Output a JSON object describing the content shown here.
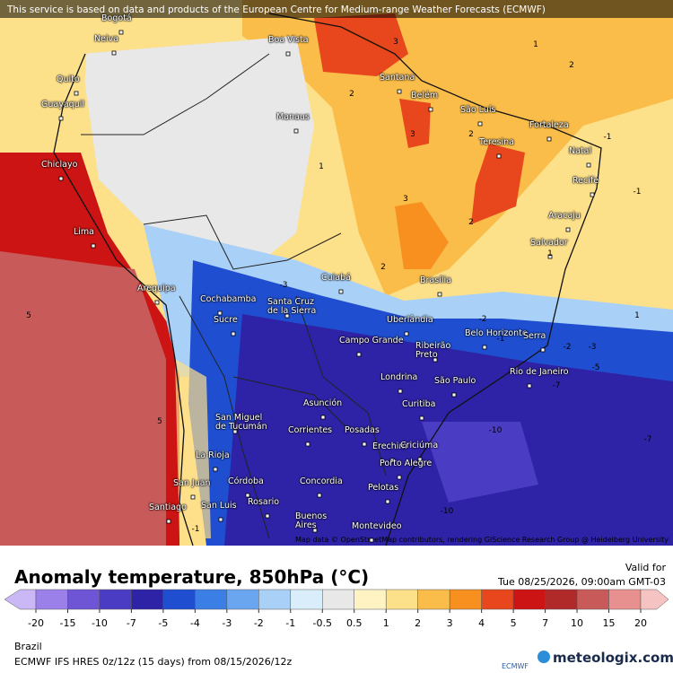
{
  "banner": "This service is based on data and products of the European Centre for Medium-range Weather Forecasts (ECMWF)",
  "cities": [
    "Bogotá",
    "Neiva",
    "Quito",
    "Guayaquil",
    "Chiclayo",
    "Lima",
    "Arequipa",
    "Cochabamba",
    "Sucre",
    "Santa Cruz\nde la Sierra",
    "Cuiabá",
    "Brasília",
    "Uberlândia",
    "Belo Horizonte",
    "Campo Grande",
    "Ribeirão\nPreto",
    "Rio de Janeiro",
    "São Paulo",
    "Londrina",
    "Curitiba",
    "Asunción",
    "San Miguel\nde Tucumán",
    "Corrientes",
    "Posadas",
    "Erechim",
    "Criciúma",
    "Porto Alegre",
    "La Rioja",
    "Córdoba",
    "San Juan",
    "Concordia",
    "Pelotas",
    "Rosario",
    "San Luis",
    "Santiago",
    "Buenos\nAires",
    "Montevideo",
    "Boa Vista",
    "Manaus",
    "Santana",
    "Belém",
    "São Luís",
    "Fortaleza",
    "Teresina",
    "Natal",
    "Recife",
    "Aracaju",
    "Salvador",
    "Serra"
  ],
  "contour_labels": [
    "3",
    "2",
    "2",
    "3",
    "2",
    "1",
    "1",
    "3",
    "2",
    "2",
    "1",
    "-1",
    "-1",
    "1",
    "-2",
    "-1",
    "-2",
    "-3",
    "-5",
    "-7",
    "-10",
    "-7",
    "-10",
    "-1",
    "5",
    "5",
    "-3"
  ],
  "attribution": "Map data © OpenStreetMap contributors, rendering GIScience Research Group @ Heidelberg University",
  "title": "Anomaly temperature, 850hPa (°C)",
  "valid_label": "Valid for",
  "valid_time": "Tue 08/25/2026, 09:00am GMT-03",
  "colorbar": {
    "ticks": [
      -20,
      -15,
      -10,
      -7,
      -5,
      -4,
      -3,
      -2,
      -1,
      -0.5,
      0.5,
      1,
      2,
      3,
      4,
      5,
      7,
      10,
      15,
      20
    ],
    "colors": [
      "#c9b8f5",
      "#9a80e8",
      "#6d55d6",
      "#4b3cc4",
      "#2e23a6",
      "#1f4fd0",
      "#3a7ee6",
      "#6aa6f0",
      "#a9d0f7",
      "#d9eefa",
      "#e8e8e8",
      "#fff3c4",
      "#fde08a",
      "#fbbd4a",
      "#f7901e",
      "#e8461c",
      "#cc1414",
      "#b02a2a",
      "#c85a5a",
      "#e89090",
      "#f6c3c3"
    ]
  },
  "region": "Brazil",
  "model_info": "ECMWF IFS HRES 0z/12z (15 days) from 08/15/2026/12z",
  "logo_ecmwf": "ECMWF",
  "logo_site": "meteologix.com"
}
